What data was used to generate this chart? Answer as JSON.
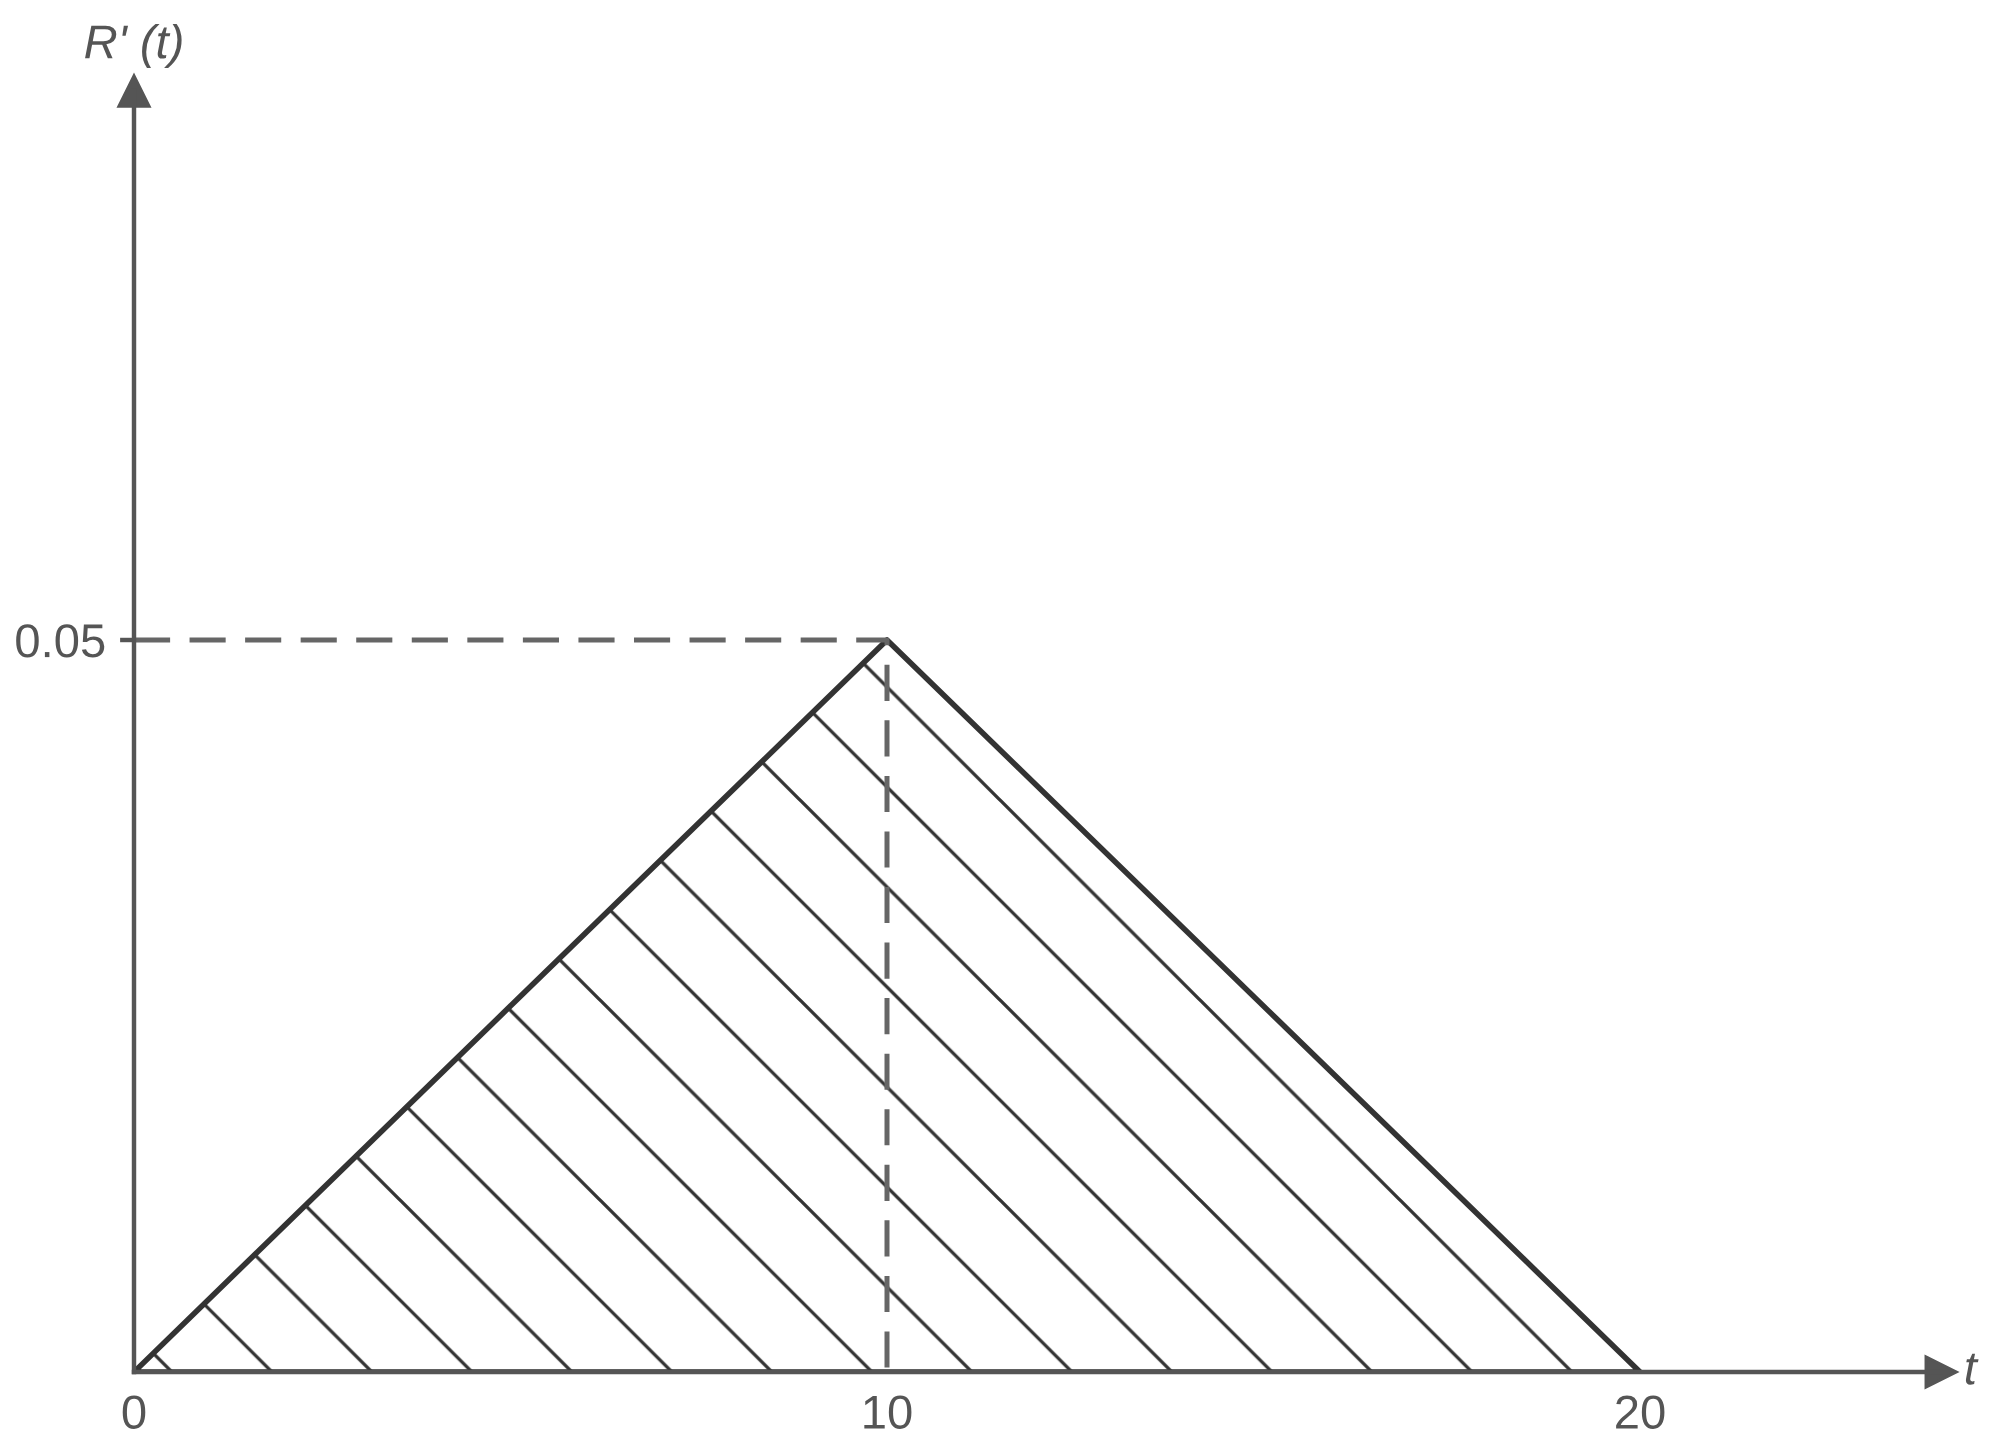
{
  "chart_data": {
    "type": "area",
    "xlabel": "t",
    "ylabel": "R' (t)",
    "xlim": [
      0,
      24
    ],
    "ylim": [
      0,
      0.0875
    ],
    "xticks": [
      0,
      10,
      20
    ],
    "yticks": [
      0.05
    ],
    "grid": false,
    "series": [
      {
        "color": "#333333",
        "x": [
          0,
          10,
          20
        ],
        "values": [
          0,
          0.05,
          0
        ]
      },
      {
        "type": "line",
        "color": "#666666",
        "x": [
          0,
          10,
          10
        ],
        "values": [
          0.05,
          0.05,
          0
        ],
        "line_style": "dashed",
        "marker": "none"
      }
    ]
  }
}
